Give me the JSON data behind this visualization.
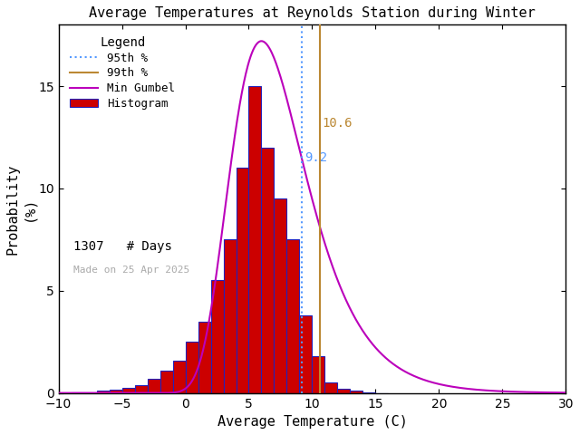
{
  "title": "Average Temperatures at Reynolds Station during Winter",
  "xlabel": "Average Temperature (C)",
  "ylabel": "Probability\n(%)",
  "xlim": [
    -10,
    30
  ],
  "ylim": [
    0,
    18
  ],
  "bin_edges": [
    -9,
    -8,
    -7,
    -6,
    -5,
    -4,
    -3,
    -2,
    -1,
    0,
    1,
    2,
    3,
    4,
    5,
    6,
    7,
    8,
    9,
    10,
    11,
    12,
    13,
    14,
    15
  ],
  "bin_heights": [
    0.05,
    0.05,
    0.1,
    0.15,
    0.25,
    0.4,
    0.7,
    1.1,
    1.6,
    2.5,
    3.5,
    5.5,
    7.5,
    11.0,
    15.0,
    12.0,
    9.5,
    7.5,
    3.8,
    1.8,
    0.5,
    0.2,
    0.1,
    0.05,
    0.0
  ],
  "bar_color": "#cc0000",
  "bar_edgecolor": "#2222bb",
  "pct95": 9.2,
  "pct99": 10.6,
  "pct95_color": "#5599ff",
  "pct99_color": "#bb8833",
  "gumbel_color": "#bb00bb",
  "gumbel_mu": 6.0,
  "gumbel_beta": 3.0,
  "gumbel_peak": 17.2,
  "n_days": 1307,
  "made_on": "Made on 25 Apr 2025",
  "made_on_color": "#aaaaaa",
  "bg_color": "#ffffff",
  "title_color": "#000000",
  "yticks": [
    0,
    5,
    10,
    15
  ],
  "xticks": [
    -10,
    -5,
    0,
    5,
    10,
    15,
    20,
    25,
    30
  ]
}
